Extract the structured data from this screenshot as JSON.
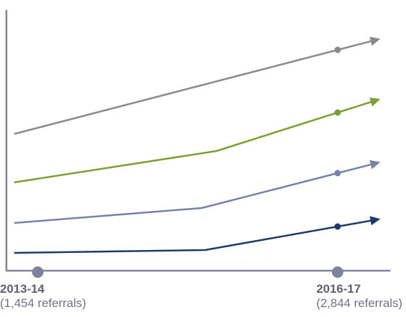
{
  "chart_data": {
    "type": "line",
    "title": "",
    "x_axis": {
      "ticks": [
        {
          "period": "2013-14",
          "note": "(1,454 referrals)"
        },
        {
          "period": "2016-17",
          "note": "(2,844 referrals)"
        }
      ]
    },
    "y_axis": {
      "tick_labels": false
    },
    "grid": false,
    "legend": "none",
    "series": [
      {
        "color": "#8a8a8a",
        "points": [
          [
            0,
            188
          ],
          [
            1.0,
            70
          ]
        ],
        "end_arrow": true
      },
      {
        "color": "#7aa032",
        "points": [
          [
            0,
            256
          ],
          [
            0.625,
            212
          ],
          [
            1.0,
            158
          ]
        ],
        "end_arrow": true
      },
      {
        "color": "#7482a8",
        "points": [
          [
            0,
            313
          ],
          [
            0.58,
            292
          ],
          [
            1.0,
            243
          ]
        ],
        "end_arrow": true
      },
      {
        "color": "#1e3a66",
        "points": [
          [
            0,
            355
          ],
          [
            0.59,
            351
          ],
          [
            1.0,
            318
          ]
        ],
        "end_arrow": true
      }
    ],
    "colors": {
      "axis": "#7f829f",
      "marker": "#7f829f"
    }
  }
}
